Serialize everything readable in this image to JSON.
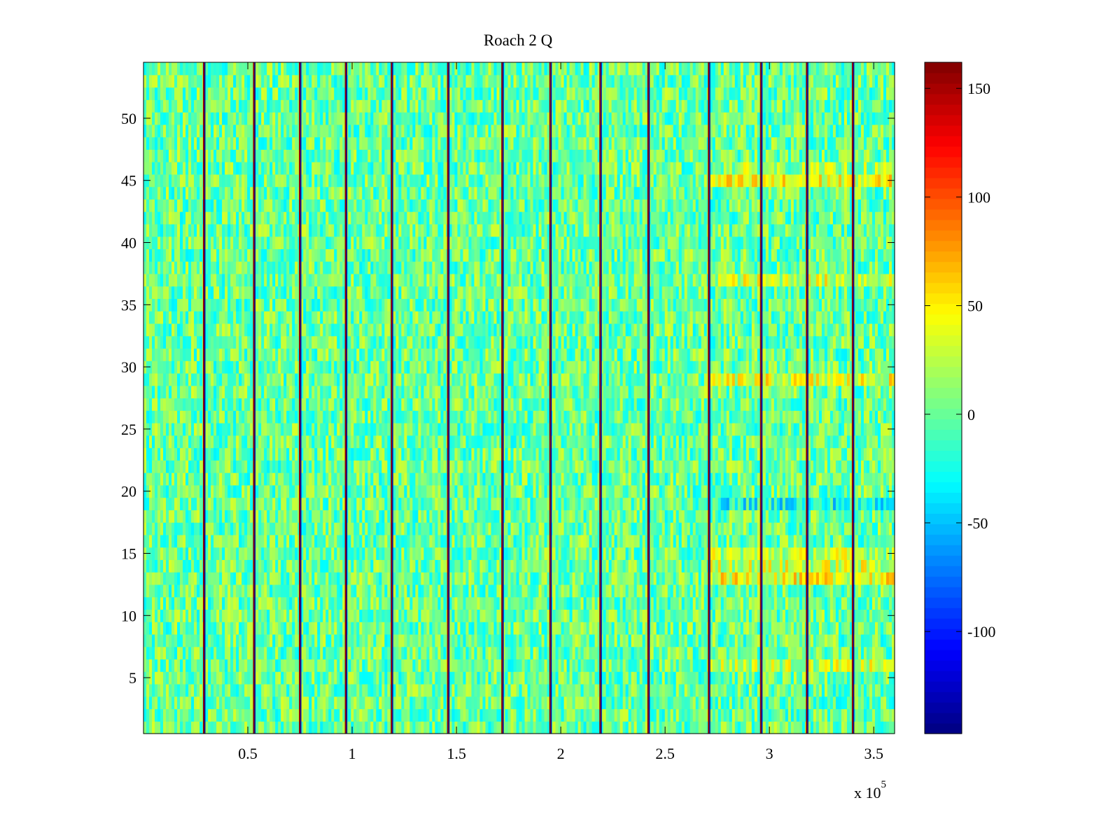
{
  "chart_data": {
    "type": "heatmap",
    "title": "Roach 2 Q",
    "xlabel": "",
    "ylabel": "",
    "x_multiplier_label": "x 10",
    "x_multiplier_exponent": "5",
    "xlim": [
      0,
      3.6
    ],
    "ylim": [
      0.5,
      54.5
    ],
    "x_ticks": [
      {
        "value": 0.5,
        "label": "0.5"
      },
      {
        "value": 1,
        "label": "1"
      },
      {
        "value": 1.5,
        "label": "1.5"
      },
      {
        "value": 2,
        "label": "2"
      },
      {
        "value": 2.5,
        "label": "2.5"
      },
      {
        "value": 3,
        "label": "3"
      },
      {
        "value": 3.5,
        "label": "3.5"
      }
    ],
    "y_ticks": [
      {
        "value": 5,
        "label": "5"
      },
      {
        "value": 10,
        "label": "10"
      },
      {
        "value": 15,
        "label": "15"
      },
      {
        "value": 20,
        "label": "20"
      },
      {
        "value": 25,
        "label": "25"
      },
      {
        "value": 30,
        "label": "30"
      },
      {
        "value": 35,
        "label": "35"
      },
      {
        "value": 40,
        "label": "40"
      },
      {
        "value": 45,
        "label": "45"
      },
      {
        "value": 50,
        "label": "50"
      }
    ],
    "n_rows": 54,
    "background_value": 0,
    "noise_amplitude": 35,
    "colorbar": {
      "colormap": "jet",
      "clim": [
        -147,
        162
      ],
      "ticks": [
        {
          "value": 150,
          "label": "150"
        },
        {
          "value": 100,
          "label": "100"
        },
        {
          "value": 50,
          "label": "50"
        },
        {
          "value": 0,
          "label": "0"
        },
        {
          "value": -50,
          "label": "-50"
        },
        {
          "value": -100,
          "label": "-100"
        }
      ]
    },
    "spike_lines_x": [
      0.29,
      0.53,
      0.75,
      0.97,
      1.19,
      1.46,
      1.72,
      1.95,
      2.19,
      2.42,
      2.71,
      2.96,
      3.18,
      3.4
    ],
    "row_offsets_after_x": 2.71,
    "row_offsets": [
      {
        "row": 6,
        "offset": 25
      },
      {
        "row": 13,
        "offset": 40
      },
      {
        "row": 14,
        "offset": 30
      },
      {
        "row": 15,
        "offset": 25
      },
      {
        "row": 19,
        "offset": -25
      },
      {
        "row": 29,
        "offset": 35
      },
      {
        "row": 37,
        "offset": 30
      },
      {
        "row": 45,
        "offset": 40
      },
      {
        "row": 46,
        "offset": 15
      }
    ],
    "grid": false,
    "legend": "none"
  }
}
